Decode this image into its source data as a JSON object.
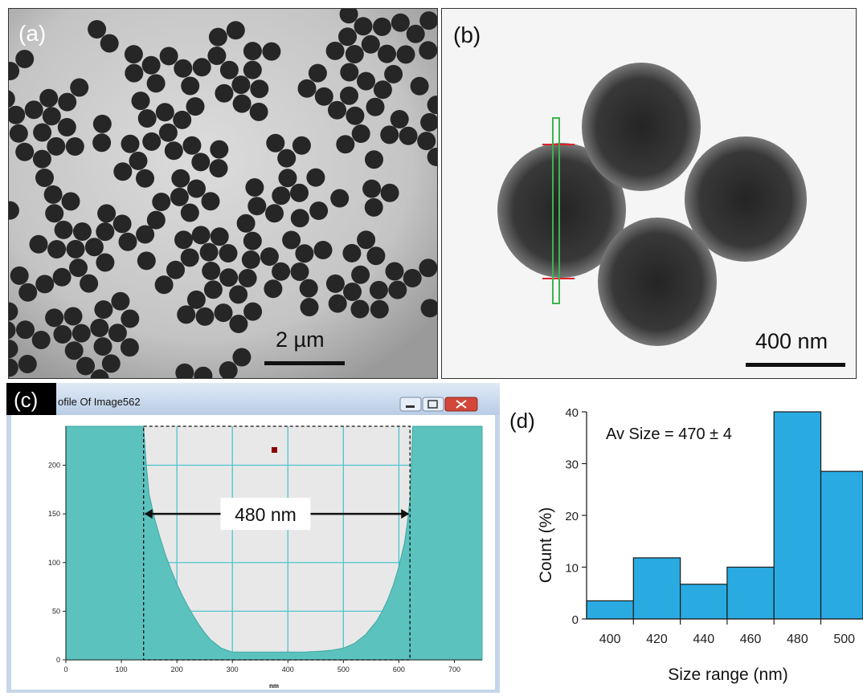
{
  "panels": {
    "a": {
      "label": "(a)",
      "scale_bar": "2 µm"
    },
    "b": {
      "label": "(b)",
      "scale_bar": "400 nm"
    },
    "c": {
      "label": "(c)",
      "window_title": "ofile Of Image562"
    },
    "d": {
      "label": "(d)"
    }
  },
  "colors": {
    "profile_fill": "#5cc2be",
    "histogram_bar": "#29abe2",
    "grid_line": "#4fc3cf",
    "particle": "#262626",
    "measure_red": "#e0202a",
    "measure_green": "#3cb44b"
  },
  "chart_data": [
    {
      "type": "area",
      "panel": "c",
      "title": "",
      "xlabel": "nm",
      "ylabel": "",
      "xlim": [
        0,
        750
      ],
      "ylim": [
        0,
        240
      ],
      "x_ticks": [
        "0",
        "100",
        "200",
        "300",
        "400",
        "500",
        "600",
        "700"
      ],
      "y_ticks": [
        "0",
        "50",
        "100",
        "150",
        "200"
      ],
      "annotation": "480 nm",
      "measure_range": [
        140,
        620
      ],
      "x": [
        0,
        140,
        145,
        150,
        160,
        170,
        180,
        190,
        200,
        210,
        220,
        230,
        240,
        250,
        260,
        280,
        300,
        350,
        400,
        430,
        460,
        480,
        500,
        520,
        540,
        560,
        570,
        580,
        590,
        600,
        610,
        615,
        620,
        625,
        750
      ],
      "y": [
        240,
        240,
        200,
        170,
        145,
        125,
        107,
        92,
        78,
        66,
        55,
        45,
        36,
        28,
        21,
        12,
        8,
        8,
        8,
        8,
        9,
        10,
        12,
        17,
        26,
        40,
        50,
        62,
        77,
        96,
        120,
        140,
        165,
        240,
        240
      ]
    },
    {
      "type": "bar",
      "panel": "d",
      "title": "",
      "annotation": "Av Size = 470 ± 4",
      "xlabel": "Size range (nm)",
      "ylabel": "Count (%)",
      "categories": [
        "400",
        "420",
        "440",
        "460",
        "480",
        "500"
      ],
      "bins": [
        [
          390,
          410
        ],
        [
          410,
          430
        ],
        [
          430,
          450
        ],
        [
          450,
          470
        ],
        [
          470,
          490
        ],
        [
          490,
          510
        ]
      ],
      "values": [
        3.5,
        11.8,
        6.7,
        10,
        40,
        28.5
      ],
      "xlim": [
        390,
        508
      ],
      "ylim": [
        0,
        40
      ],
      "y_ticks": [
        "0",
        "10",
        "20",
        "30",
        "40"
      ]
    }
  ]
}
